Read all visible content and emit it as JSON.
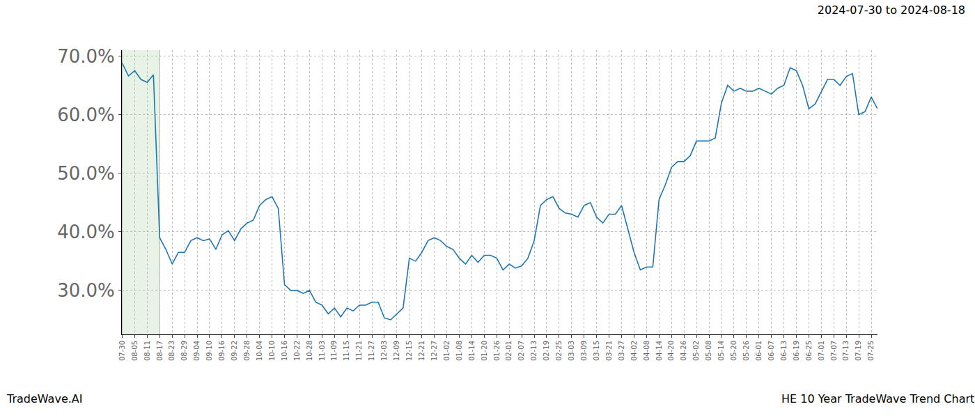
{
  "chart_data": {
    "type": "line",
    "title": "2024-07-30 to 2024-08-18",
    "annotations": [
      "TradeWave.AI",
      "HE 10 Year TradeWave Trend Chart"
    ],
    "color": "#1f77b4",
    "grid": true,
    "highlight": [
      "07-30",
      "08-17"
    ],
    "categories": [
      "07-30",
      null,
      "08-05",
      null,
      "08-11",
      null,
      "08-17",
      null,
      "08-23",
      null,
      "08-29",
      null,
      "09-04",
      null,
      "09-10",
      null,
      "09-16",
      null,
      "09-22",
      null,
      "09-28",
      null,
      "10-04",
      null,
      "10-10",
      null,
      "10-16",
      null,
      "10-22",
      null,
      "10-28",
      null,
      "11-03",
      null,
      "11-09",
      null,
      "11-15",
      null,
      "11-21",
      null,
      "11-27",
      null,
      "12-03",
      null,
      "12-09",
      null,
      "12-15",
      null,
      "12-21",
      null,
      "12-27",
      null,
      "01-02",
      null,
      "01-08",
      null,
      "01-14",
      null,
      "01-20",
      null,
      "01-26",
      null,
      "02-01",
      null,
      "02-07",
      null,
      "02-13",
      null,
      "02-19",
      null,
      "02-25",
      null,
      "03-03",
      null,
      "03-09",
      null,
      "03-15",
      null,
      "03-21",
      null,
      "03-27",
      null,
      "04-02",
      null,
      "04-08",
      null,
      "04-14",
      null,
      "04-20",
      null,
      "04-26",
      null,
      "05-02",
      null,
      "05-08",
      null,
      "05-14",
      null,
      "05-20",
      null,
      "05-26",
      null,
      "06-01",
      null,
      "06-07",
      null,
      "06-13",
      null,
      "06-19",
      null,
      "06-25",
      null,
      "07-01",
      null,
      "07-07",
      null,
      "07-13",
      null,
      "07-19",
      null,
      "07-25",
      null
    ],
    "values": [
      68.8,
      66.6,
      67.5,
      66,
      65.5,
      66.8,
      39,
      37,
      34.5,
      36.5,
      36.5,
      38.5,
      39,
      38.5,
      38.8,
      37,
      39.5,
      40.2,
      38.5,
      40.5,
      41.5,
      42,
      44.5,
      45.5,
      46,
      44,
      31,
      30,
      30,
      29.5,
      30,
      28,
      27.5,
      26,
      27,
      25.5,
      27,
      26.5,
      27.5,
      27.5,
      28,
      28,
      25.3,
      25,
      26,
      27,
      35.5,
      35,
      36.5,
      38.5,
      39,
      38.5,
      37.5,
      37,
      35.5,
      34.5,
      36,
      34.8,
      36,
      36,
      35.5,
      33.5,
      34.5,
      33.8,
      34.2,
      35.5,
      38.5,
      44.5,
      45.5,
      46,
      44,
      43.2,
      43,
      42.5,
      44.5,
      45,
      42.5,
      41.5,
      43,
      43,
      44.5,
      40.5,
      36.5,
      33.5,
      34,
      34,
      45.5,
      48,
      51,
      52,
      52,
      53,
      55.5,
      55.5,
      55.5,
      56,
      62,
      65,
      64,
      64.5,
      64,
      64,
      64.5,
      64,
      63.5,
      64.5,
      65,
      68,
      67.5,
      65,
      61,
      61.8,
      64,
      66,
      66,
      65,
      66.5,
      67,
      60,
      60.5,
      63,
      61
    ],
    "ylim": [
      22.5,
      71
    ],
    "yticks": [
      {
        "value": 30,
        "label": "30.0%"
      },
      {
        "value": 40,
        "label": "40.0%"
      },
      {
        "value": 50,
        "label": "50.0%"
      },
      {
        "value": 60,
        "label": "60.0%"
      },
      {
        "value": 70,
        "label": "70.0%"
      }
    ]
  }
}
